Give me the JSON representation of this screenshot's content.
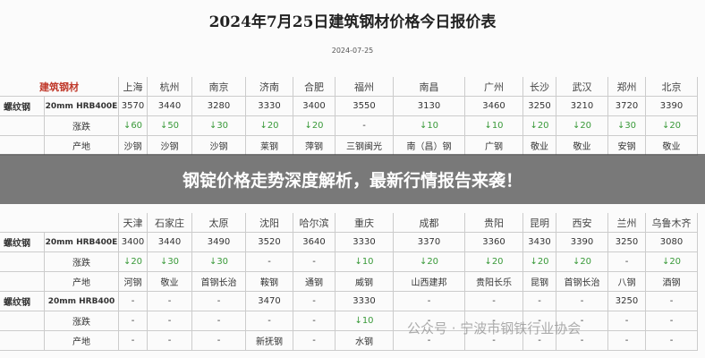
{
  "title": "2024年7月25日建筑钢材价格今日报价表",
  "date": "2024-07-25",
  "banner": "钢锭价格走势深度解析，最新行情报告来袭！",
  "watermark": "公众号 · 宁波市钢铁行业协会",
  "tables": [
    {
      "corner": "建筑钢材",
      "cities": [
        "上海",
        "杭州",
        "南京",
        "济南",
        "合肥",
        "福州",
        "南昌",
        "广州",
        "长沙",
        "武汉",
        "郑州",
        "北京"
      ],
      "rows": [
        {
          "product": "螺纹钢",
          "name": "20mm HRB400E",
          "cells": [
            "3570",
            "3440",
            "3280",
            "3330",
            "3400",
            "3550",
            "3130",
            "3460",
            "3250",
            "3210",
            "3720",
            "3390"
          ]
        },
        {
          "name": "涨跌",
          "cells": [
            "↓60",
            "↓50",
            "↓30",
            "↓20",
            "↓20",
            "-",
            "↓10",
            "↓10",
            "↓20",
            "↓20",
            "↓30",
            "↓20"
          ]
        },
        {
          "name": "产地",
          "cells": [
            "沙钢",
            "沙钢",
            "沙钢",
            "莱钢",
            "萍钢",
            "三钢闽光",
            "南（昌）钢",
            "广钢",
            "敬业",
            "敬业",
            "安钢",
            "敬业"
          ]
        }
      ]
    },
    {
      "cities": [
        "天津",
        "石家庄",
        "太原",
        "沈阳",
        "哈尔滨",
        "重庆",
        "成都",
        "贵阳",
        "昆明",
        "西安",
        "兰州",
        "乌鲁木齐"
      ],
      "rows": [
        {
          "product": "螺纹钢",
          "name": "20mm HRB400E",
          "cells": [
            "3400",
            "3440",
            "3490",
            "3520",
            "3640",
            "3330",
            "3370",
            "3360",
            "3430",
            "3390",
            "3250",
            "3080"
          ]
        },
        {
          "name": "涨跌",
          "cells": [
            "↓20",
            "↓30",
            "↓30",
            "-",
            "-",
            "↓10",
            "↓20",
            "↓20",
            "↓20",
            "↓20",
            "-",
            "↓20"
          ]
        },
        {
          "name": "产地",
          "cells": [
            "河钢",
            "敬业",
            "首钢长治",
            "鞍钢",
            "通钢",
            "威钢",
            "山西建邦",
            "贵阳长乐",
            "昆钢",
            "首钢长治",
            "八钢",
            "酒钢"
          ]
        },
        {
          "product": "螺纹钢",
          "name": "20mm HRB400",
          "cells": [
            "-",
            "-",
            "-",
            "3470",
            "-",
            "3330",
            "-",
            "-",
            "-",
            "-",
            "3250",
            "-"
          ]
        },
        {
          "name": "涨跌",
          "cells": [
            "-",
            "-",
            "-",
            "-",
            "-",
            "↓10",
            "-",
            "-",
            "-",
            "-",
            "-",
            "-"
          ]
        },
        {
          "name": "产地",
          "cells": [
            "-",
            "-",
            "-",
            "新抚钢",
            "-",
            "水钢",
            "-",
            "-",
            "-",
            "-",
            "-",
            "-"
          ]
        }
      ]
    }
  ]
}
